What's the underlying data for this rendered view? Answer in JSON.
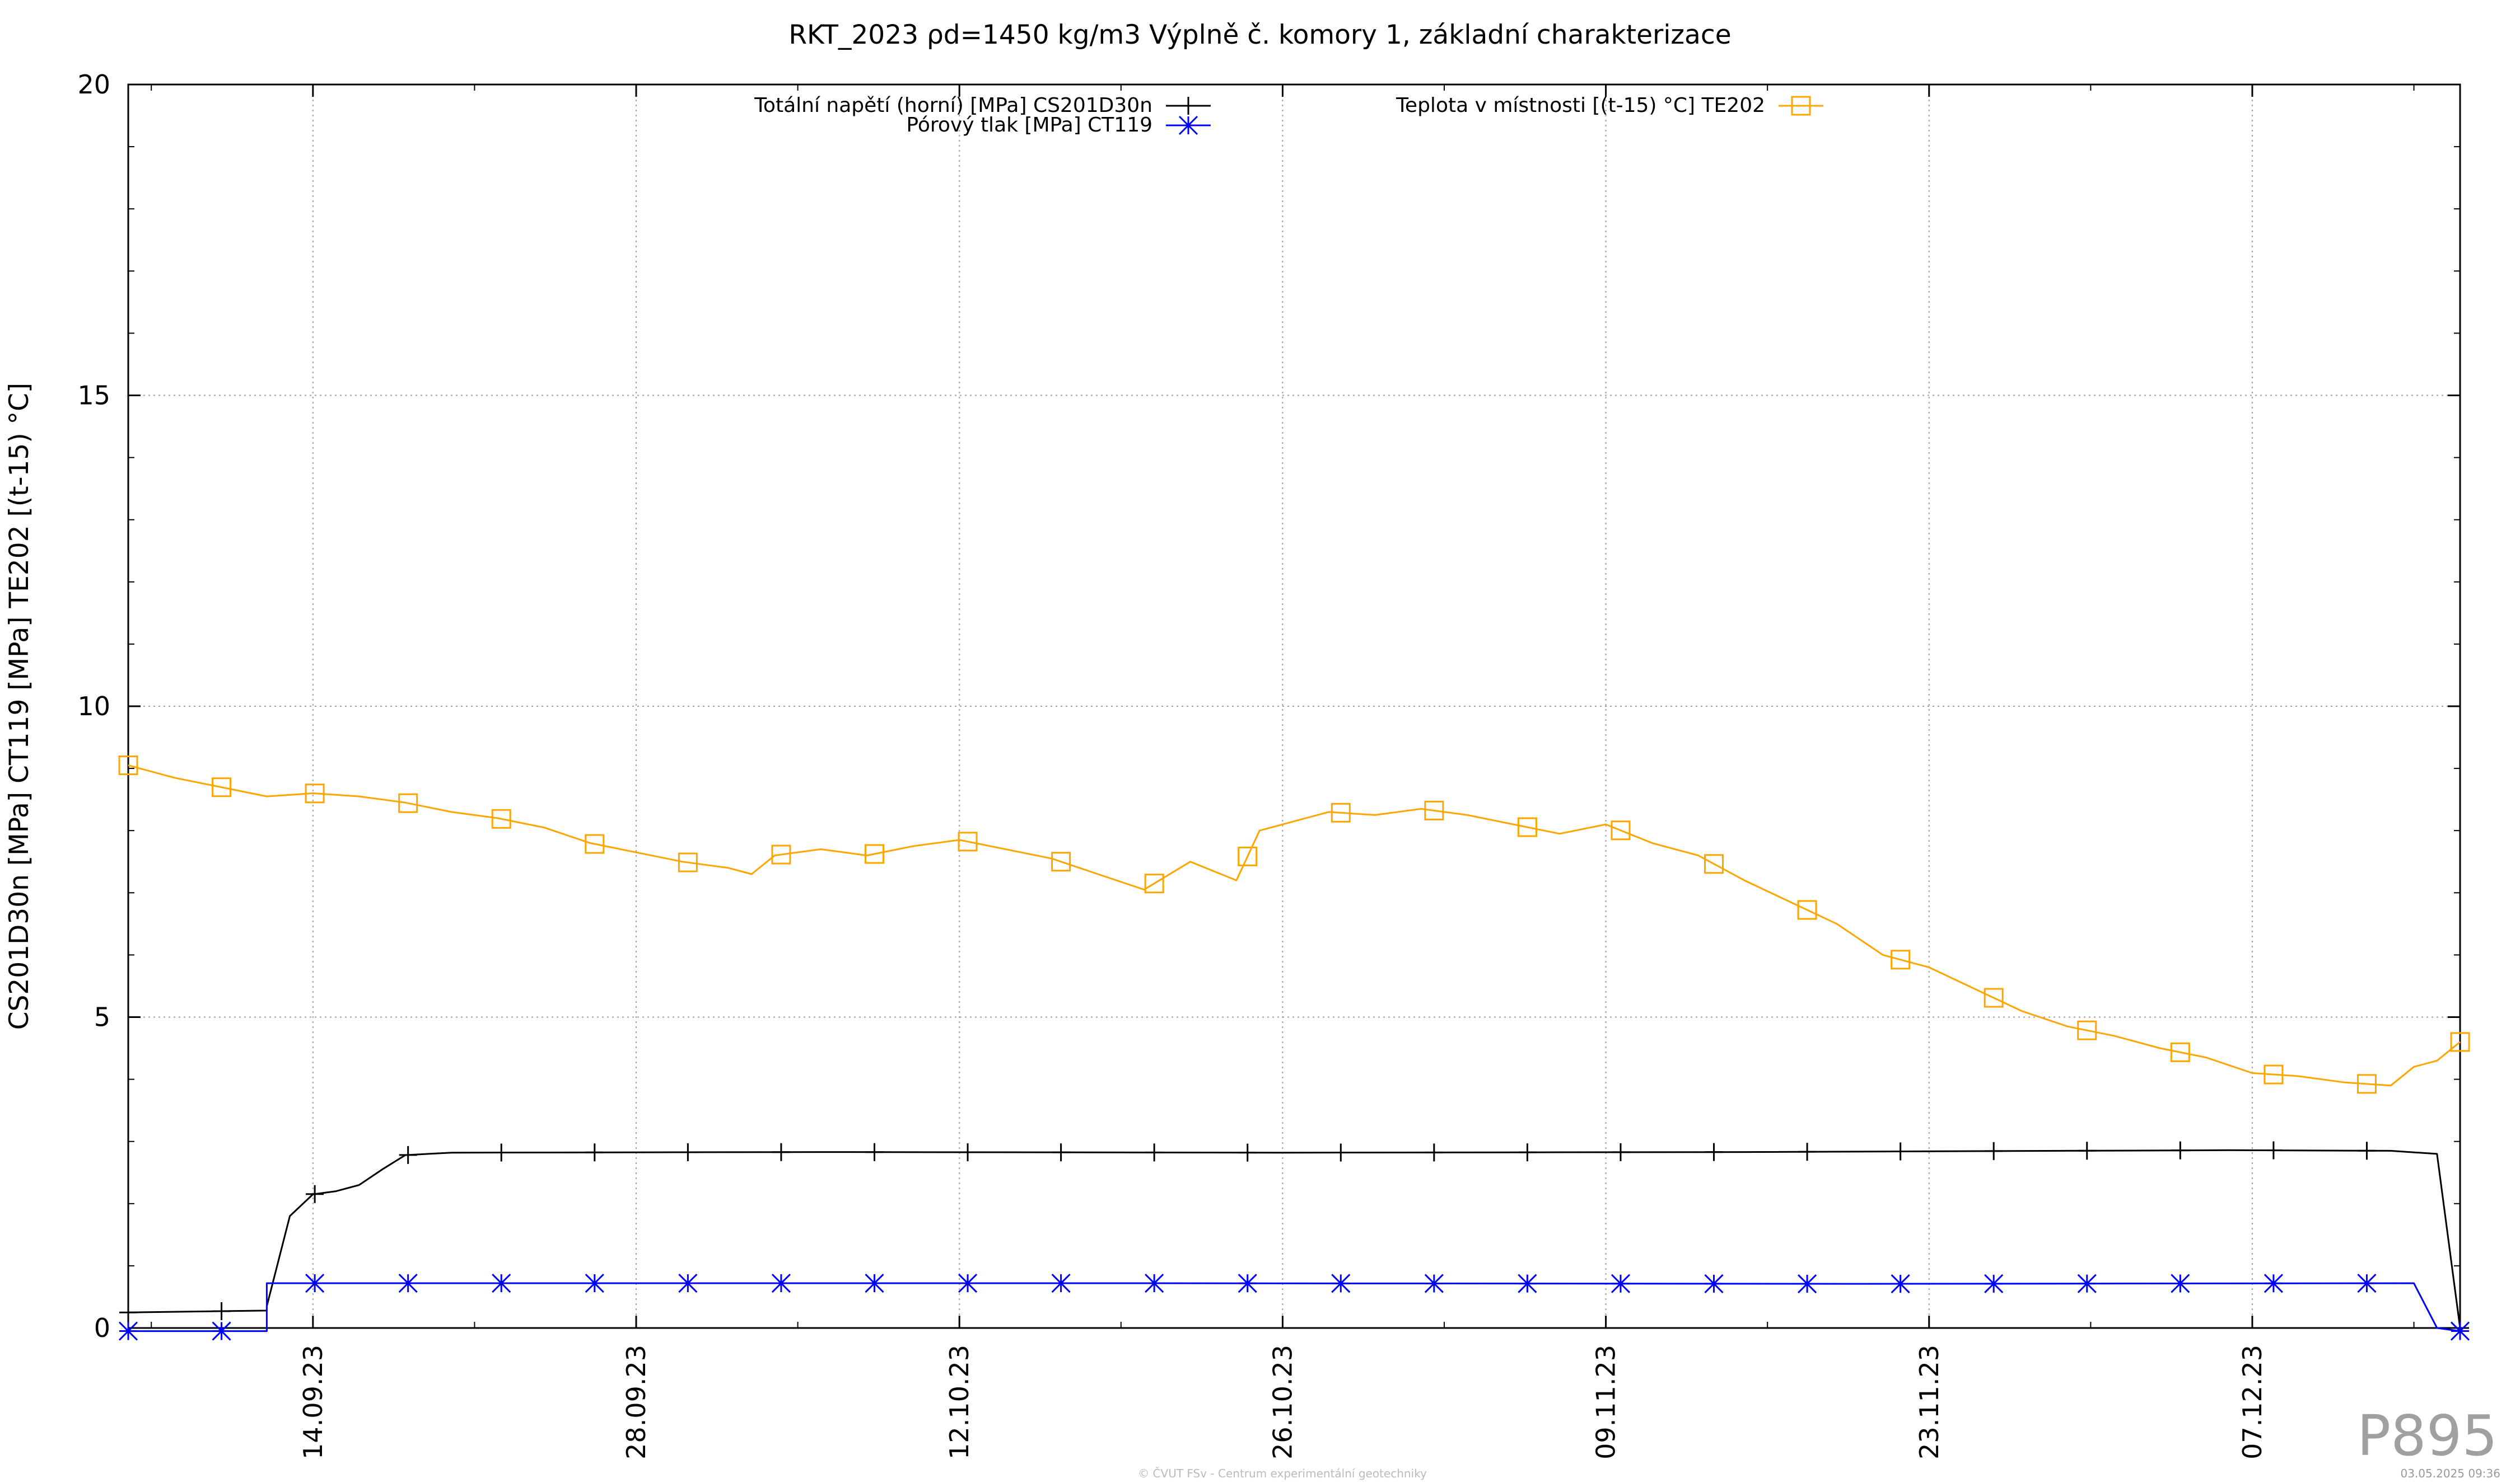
{
  "chart_data": {
    "type": "line",
    "title": "RKT_2023 ρd=1450 kg/m3 Výplně č. komory 1, základní charakterizace",
    "xlabel": "",
    "ylabel": "CS201D30n [MPa] CT119 [MPa] TE202 [(t-15) °C]",
    "ylim": [
      0,
      20
    ],
    "yticks": [
      0,
      5,
      10,
      15,
      20
    ],
    "xlim": [
      "2023-09-06",
      "2023-12-16"
    ],
    "xticks": [
      "14.09.23",
      "28.09.23",
      "12.10.23",
      "26.10.23",
      "09.11.23",
      "23.11.23",
      "07.12.23"
    ],
    "grid": true,
    "legend_position": "top",
    "series": [
      {
        "name": "Totální napětí (horní) [MPa] CS201D30n",
        "color": "#000000",
        "marker": "plus",
        "x": [
          "2023-09-06",
          "2023-09-12",
          "2023-09-12",
          "2023-09-13",
          "2023-09-14",
          "2023-09-15",
          "2023-09-16",
          "2023-09-17",
          "2023-09-18",
          "2023-09-20",
          "2023-10-06",
          "2023-10-26",
          "2023-11-15",
          "2023-12-06",
          "2023-12-13",
          "2023-12-15",
          "2023-12-16"
        ],
        "y": [
          0.25,
          0.28,
          0.35,
          1.8,
          2.15,
          2.2,
          2.3,
          2.55,
          2.78,
          2.82,
          2.83,
          2.82,
          2.83,
          2.86,
          2.85,
          2.8,
          0.0
        ]
      },
      {
        "name": "Pórový tlak [MPa] CT119",
        "color": "#0000ff",
        "marker": "star",
        "x": [
          "2023-09-06",
          "2023-09-12",
          "2023-09-12",
          "2023-10-20",
          "2023-11-20",
          "2023-12-14",
          "2023-12-15",
          "2023-12-16"
        ],
        "y": [
          -0.05,
          -0.05,
          0.72,
          0.72,
          0.71,
          0.72,
          0.0,
          -0.05
        ]
      },
      {
        "name": "Teplota v místnosti [(t-15) °C] TE202",
        "color": "#ffa500",
        "marker": "square",
        "x": [
          "2023-09-06",
          "2023-09-08",
          "2023-09-10",
          "2023-09-12",
          "2023-09-14",
          "2023-09-16",
          "2023-09-18",
          "2023-09-20",
          "2023-09-22",
          "2023-09-24",
          "2023-09-26",
          "2023-09-28",
          "2023-09-30",
          "2023-10-02",
          "2023-10-03",
          "2023-10-04",
          "2023-10-06",
          "2023-10-08",
          "2023-10-10",
          "2023-10-12",
          "2023-10-14",
          "2023-10-16",
          "2023-10-18",
          "2023-10-20",
          "2023-10-22",
          "2023-10-24",
          "2023-10-25",
          "2023-10-26",
          "2023-10-28",
          "2023-10-30",
          "2023-11-01",
          "2023-11-03",
          "2023-11-05",
          "2023-11-07",
          "2023-11-09",
          "2023-11-11",
          "2023-11-13",
          "2023-11-15",
          "2023-11-17",
          "2023-11-19",
          "2023-11-21",
          "2023-11-23",
          "2023-11-25",
          "2023-11-27",
          "2023-11-29",
          "2023-12-01",
          "2023-12-03",
          "2023-12-05",
          "2023-12-07",
          "2023-12-09",
          "2023-12-11",
          "2023-12-13",
          "2023-12-14",
          "2023-12-15",
          "2023-12-16"
        ],
        "y": [
          9.05,
          8.85,
          8.7,
          8.55,
          8.6,
          8.55,
          8.45,
          8.3,
          8.2,
          8.05,
          7.8,
          7.65,
          7.5,
          7.4,
          7.3,
          7.6,
          7.7,
          7.6,
          7.75,
          7.85,
          7.7,
          7.55,
          7.3,
          7.05,
          7.5,
          7.2,
          8.0,
          8.1,
          8.3,
          8.25,
          8.35,
          8.25,
          8.1,
          7.95,
          8.1,
          7.8,
          7.6,
          7.2,
          6.85,
          6.5,
          6.0,
          5.8,
          5.45,
          5.1,
          4.85,
          4.7,
          4.5,
          4.35,
          4.1,
          4.05,
          3.95,
          3.9,
          4.2,
          4.3,
          4.6
        ]
      }
    ],
    "watermark": "P895",
    "footer_center": "© ČVUT FSv - Centrum experimentální geotechniky",
    "footer_right": "03.05.2025 09:36"
  }
}
